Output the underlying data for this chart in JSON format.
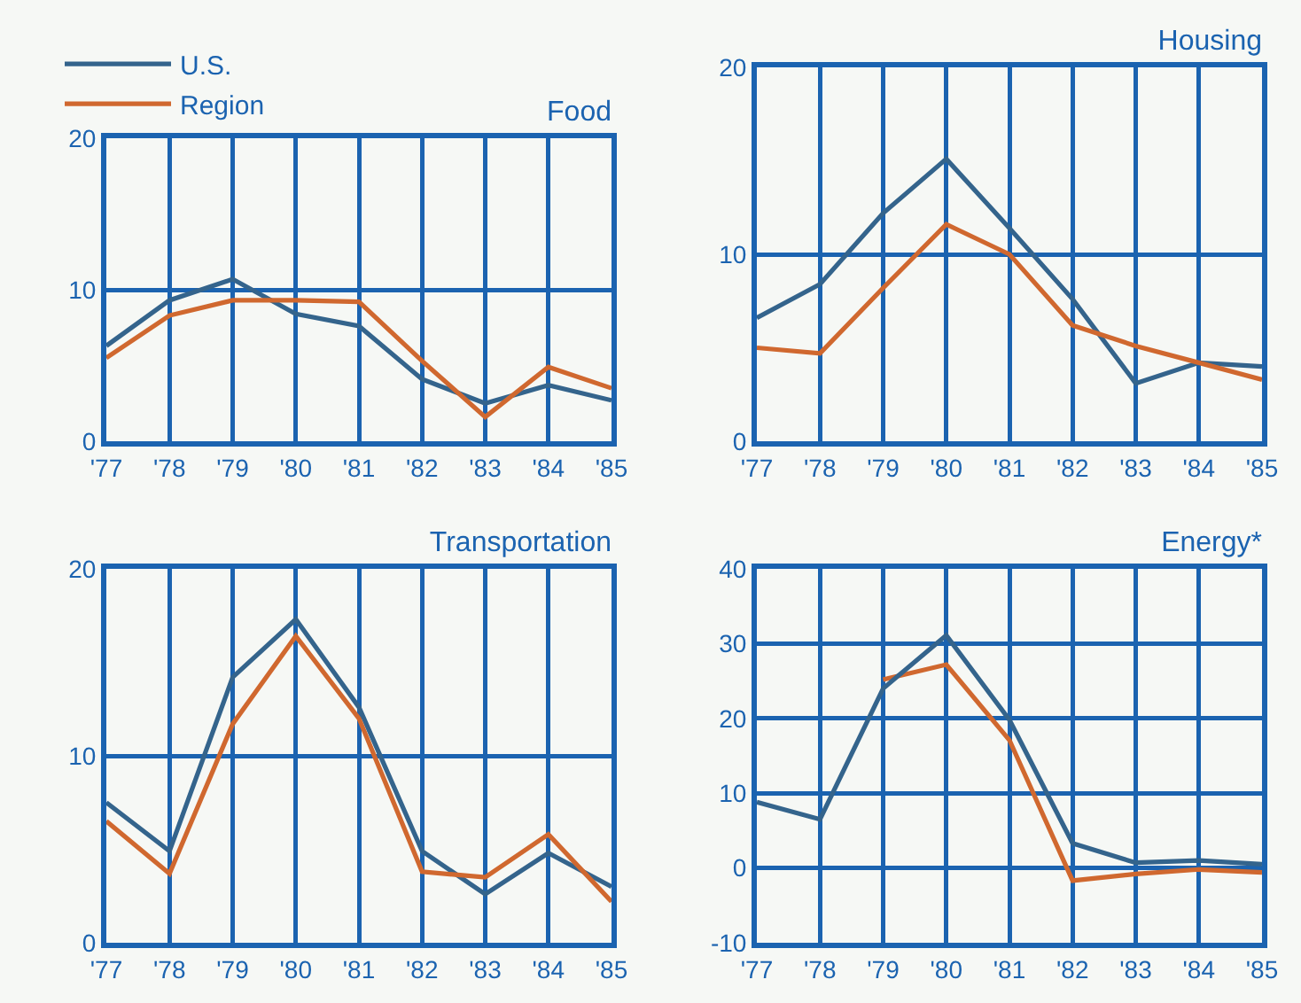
{
  "chart_data": [
    {
      "type": "line",
      "title": "Food",
      "categories": [
        "'77",
        "'78",
        "'79",
        "'80",
        "'81",
        "'82",
        "'83",
        "'84",
        "'85"
      ],
      "ylim": [
        0,
        20
      ],
      "yticks": [
        0,
        10,
        20
      ],
      "grid": true,
      "legend": "top left",
      "series": [
        {
          "name": "U.S.",
          "color": "#34648c",
          "values": [
            6.3,
            9.3,
            10.7,
            8.4,
            7.6,
            4.1,
            2.5,
            3.7,
            2.7
          ]
        },
        {
          "name": "Region",
          "color": "#d0682f",
          "values": [
            5.5,
            8.3,
            9.3,
            9.3,
            9.2,
            5.3,
            1.6,
            4.9,
            3.5
          ]
        }
      ]
    },
    {
      "type": "line",
      "title": "Housing",
      "categories": [
        "'77",
        "'78",
        "'79",
        "'80",
        "'81",
        "'82",
        "'83",
        "'84",
        "'85"
      ],
      "ylim": [
        0,
        20
      ],
      "yticks": [
        0,
        10,
        20
      ],
      "grid": true,
      "series": [
        {
          "color": "#34648c",
          "values": [
            6.6,
            8.4,
            12.2,
            15.1,
            11.4,
            7.6,
            3.1,
            4.2,
            4.0
          ]
        },
        {
          "color": "#d0682f",
          "values": [
            5.0,
            4.7,
            8.2,
            11.6,
            10.0,
            6.2,
            5.1,
            4.2,
            3.3
          ]
        }
      ]
    },
    {
      "type": "line",
      "title": "Transportation",
      "categories": [
        "'77",
        "'78",
        "'79",
        "'80",
        "'81",
        "'82",
        "'83",
        "'84",
        "'85"
      ],
      "ylim": [
        0,
        20
      ],
      "yticks": [
        0,
        10,
        20
      ],
      "grid": true,
      "series": [
        {
          "color": "#34648c",
          "values": [
            7.5,
            4.9,
            14.2,
            17.3,
            12.6,
            4.9,
            2.6,
            4.8,
            3.0
          ]
        },
        {
          "color": "#d0682f",
          "values": [
            6.5,
            3.7,
            11.7,
            16.4,
            12.0,
            3.8,
            3.5,
            5.8,
            2.2
          ]
        }
      ]
    },
    {
      "type": "line",
      "title": "Energy*",
      "categories": [
        "'77",
        "'78",
        "'79",
        "'80",
        "'81",
        "'82",
        "'83",
        "'84",
        "'85"
      ],
      "ylim": [
        -10,
        40
      ],
      "yticks": [
        -10,
        0,
        10,
        20,
        30,
        40
      ],
      "grid": true,
      "series": [
        {
          "color": "#d0682f",
          "values": [
            null,
            null,
            25.2,
            27.2,
            17.1,
            -1.7,
            -0.8,
            -0.2,
            -0.6
          ]
        },
        {
          "color": "#34648c",
          "values": [
            8.8,
            6.5,
            24.0,
            31.1,
            19.8,
            3.3,
            0.7,
            1.0,
            0.5
          ]
        }
      ]
    }
  ]
}
